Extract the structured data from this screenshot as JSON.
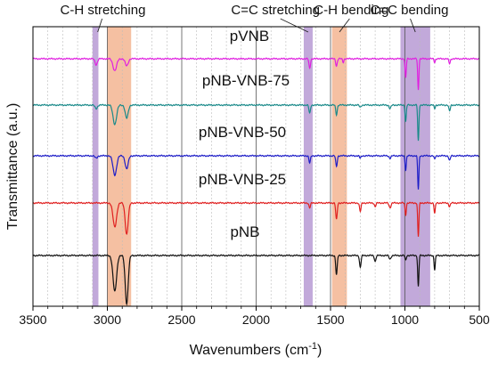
{
  "chart_data": {
    "type": "line",
    "title": "",
    "xlabel": "Wavenumbers (cm",
    "xlabel_sup": "-1",
    "xlabel_close": ")",
    "ylabel": "Transmittance (a.u.)",
    "xlim": [
      3500,
      500
    ],
    "x_reversed": true,
    "xticks": [
      3500,
      3000,
      2500,
      2000,
      1500,
      1000,
      500
    ],
    "grid_x": [
      3000,
      2500,
      2000,
      1500,
      1000
    ],
    "minor_grid_step": 100,
    "y_ticks_shown": false,
    "bands": [
      {
        "from": 3100,
        "to": 3060,
        "color": "#b79ad4"
      },
      {
        "from": 3000,
        "to": 2840,
        "color": "#f3b592"
      },
      {
        "from": 1680,
        "to": 1620,
        "color": "#b79ad4"
      },
      {
        "from": 1490,
        "to": 1390,
        "color": "#f3b592"
      },
      {
        "from": 1030,
        "to": 830,
        "color": "#b79ad4"
      }
    ],
    "annotations": [
      {
        "text": "C-H stretching",
        "x": 3030,
        "target_x": 3065
      },
      {
        "text": "C=C stretching",
        "x": 1870,
        "target_x": 1650
      },
      {
        "text": "C-H bending",
        "x": 1360,
        "target_x": 1440
      },
      {
        "text": "C=C bending",
        "x": 970,
        "target_x": 930
      }
    ],
    "series": [
      {
        "name": "pVNB",
        "color": "#e020e0",
        "baseline": 0.0,
        "peaks": [
          [
            3075,
            5,
            8
          ],
          [
            2950,
            10,
            12
          ],
          [
            2870,
            6,
            10
          ],
          [
            1640,
            8,
            5
          ],
          [
            1460,
            6,
            5
          ],
          [
            1415,
            3,
            4
          ],
          [
            995,
            16,
            4
          ],
          [
            910,
            26,
            4
          ],
          [
            800,
            3,
            4
          ],
          [
            700,
            4,
            5
          ]
        ]
      },
      {
        "name": "pNB-VNB-75",
        "color": "#1a8a8a",
        "baseline": 1.0,
        "peaks": [
          [
            3075,
            3,
            8
          ],
          [
            2950,
            16,
            12
          ],
          [
            2870,
            11,
            10
          ],
          [
            1640,
            7,
            5
          ],
          [
            1460,
            8,
            5
          ],
          [
            1300,
            2,
            5
          ],
          [
            1100,
            3,
            6
          ],
          [
            995,
            14,
            4
          ],
          [
            910,
            30,
            4
          ],
          [
            800,
            3,
            4
          ],
          [
            700,
            5,
            5
          ]
        ]
      },
      {
        "name": "pNB-VNB-50",
        "color": "#1e1ec8",
        "baseline": 2.0,
        "peaks": [
          [
            3075,
            2,
            8
          ],
          [
            2950,
            16,
            12
          ],
          [
            2870,
            11,
            10
          ],
          [
            1640,
            6,
            5
          ],
          [
            1460,
            9,
            5
          ],
          [
            1300,
            2,
            5
          ],
          [
            1100,
            2,
            6
          ],
          [
            995,
            12,
            4
          ],
          [
            910,
            28,
            4
          ],
          [
            800,
            3,
            4
          ],
          [
            700,
            4,
            5
          ]
        ]
      },
      {
        "name": "pNB-VNB-25",
        "color": "#e02020",
        "baseline": 3.0,
        "peaks": [
          [
            2950,
            20,
            12
          ],
          [
            2870,
            26,
            10
          ],
          [
            1640,
            4,
            5
          ],
          [
            1460,
            14,
            5
          ],
          [
            1300,
            7,
            5
          ],
          [
            1200,
            3,
            5
          ],
          [
            1100,
            4,
            6
          ],
          [
            995,
            10,
            4
          ],
          [
            910,
            28,
            4
          ],
          [
            800,
            9,
            4
          ],
          [
            700,
            3,
            5
          ]
        ]
      },
      {
        "name": "pNB",
        "color": "#111111",
        "baseline": 4.0,
        "peaks": [
          [
            2950,
            30,
            12
          ],
          [
            2870,
            40,
            10
          ],
          [
            1460,
            16,
            5
          ],
          [
            1300,
            10,
            5
          ],
          [
            1200,
            5,
            5
          ],
          [
            1100,
            3,
            6
          ],
          [
            995,
            4,
            4
          ],
          [
            910,
            26,
            4
          ],
          [
            800,
            12,
            4
          ]
        ]
      }
    ]
  }
}
